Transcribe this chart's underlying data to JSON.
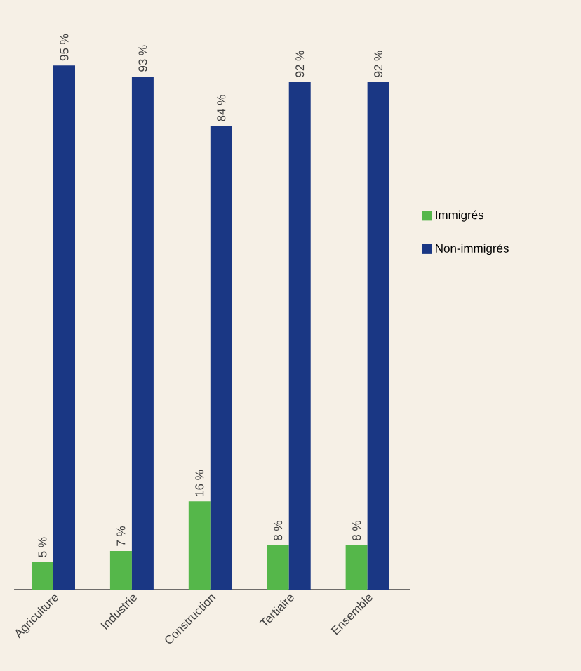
{
  "chart_data": {
    "type": "bar",
    "categories": [
      "Agriculture",
      "Industrie",
      "Construction",
      "Tertiaire",
      "Ensemble"
    ],
    "series": [
      {
        "name": "Immigrés",
        "color": "#55b74a",
        "values": [
          5,
          7,
          16,
          8,
          8
        ],
        "value_labels": [
          "5 %",
          "7 %",
          "16 %",
          "8 %",
          "8 %"
        ]
      },
      {
        "name": "Non-immigrés",
        "color": "#1a3784",
        "values": [
          95,
          93,
          84,
          92,
          92
        ],
        "value_labels": [
          "95 %",
          "93 %",
          "84 %",
          "92 %",
          "92 %"
        ]
      }
    ],
    "legend": "right"
  }
}
